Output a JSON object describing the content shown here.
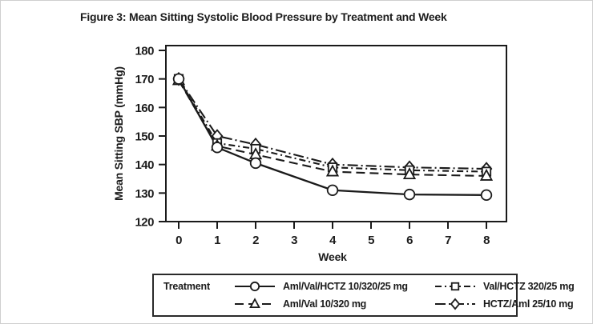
{
  "figure": {
    "title": "Figure 3: Mean Sitting Systolic Blood Pressure by Treatment and Week"
  },
  "chart_data": {
    "type": "line",
    "title": "Figure 3: Mean Sitting Systolic Blood Pressure by Treatment and Week",
    "xlabel": "Week",
    "ylabel": "Mean Sitting SBP (mmHg)",
    "xlim": [
      -0.35,
      8.55
    ],
    "ylim": [
      120,
      180
    ],
    "xticks": [
      "0",
      "1",
      "2",
      "3",
      "4",
      "5",
      "6",
      "7",
      "8"
    ],
    "yticks": [
      "120",
      "130",
      "140",
      "150",
      "160",
      "170",
      "180"
    ],
    "grid": false,
    "x": [
      0,
      1,
      2,
      4,
      6,
      8
    ],
    "series": [
      {
        "name": "Aml/Val/HCTZ 10/320/25 mg",
        "marker": "circle",
        "line": "solid",
        "values": [
          170,
          146,
          140.5,
          131,
          129.5,
          129.3
        ]
      },
      {
        "name": "Aml/Val 10/320 mg",
        "marker": "triangle",
        "line": "dashed",
        "values": [
          169.5,
          146.5,
          143.5,
          137.5,
          136.5,
          136
        ]
      },
      {
        "name": "Val/HCTZ 320/25 mg",
        "marker": "square",
        "line": "dashdot",
        "values": [
          170,
          147.5,
          145.5,
          139,
          138,
          137.5
        ]
      },
      {
        "name": "HCTZ/Aml 25/10 mg",
        "marker": "diamond",
        "line": "dashdot-long",
        "values": [
          170,
          150,
          147,
          140,
          139,
          138.5
        ]
      }
    ],
    "legend": {
      "title": "Treatment",
      "position": "bottom"
    },
    "colors": {
      "ink": "#1a1a1a",
      "background": "#ffffff"
    }
  }
}
